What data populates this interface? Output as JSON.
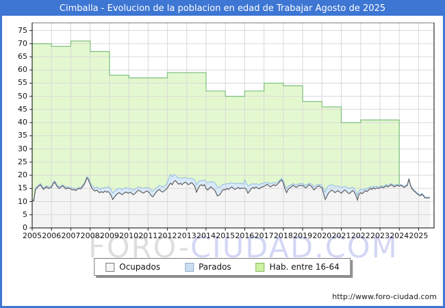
{
  "window": {
    "title": "Cimballa - Evolucion de la poblacion en edad de Trabajar Agosto de 2025"
  },
  "watermark": {
    "part1": "FORO-",
    "part2": "CIUDAD.COM"
  },
  "footer": {
    "url": "http://www.foro-ciudad.com"
  },
  "colors": {
    "frame_blue": "#3d76d3",
    "grid": "#d8d8d8",
    "plot_border": "#000000"
  },
  "legend": {
    "items": [
      {
        "label": "Ocupados",
        "fill": "#f6f6f6",
        "border": "#777777"
      },
      {
        "label": "Parados",
        "fill": "#cadef2",
        "border": "#8fadc8"
      },
      {
        "label": "Hab. entre 16-64",
        "fill": "#cdf0a2",
        "border": "#86b85e"
      }
    ]
  },
  "chart_data": {
    "type": "area",
    "title": "Cimballa - Evolucion de la poblacion en edad de Trabajar Agosto de 2025",
    "xlabel": "",
    "ylabel": "",
    "x_range": [
      2005,
      2025.8
    ],
    "y_range": [
      0,
      78
    ],
    "grid": true,
    "legend_position": "bottom",
    "y_ticks": [
      0,
      5,
      10,
      15,
      20,
      25,
      30,
      35,
      40,
      45,
      50,
      55,
      60,
      65,
      70,
      75
    ],
    "x_ticks": [
      2005,
      2006,
      2007,
      2008,
      2009,
      2010,
      2011,
      2012,
      2013,
      2014,
      2015,
      2016,
      2017,
      2018,
      2019,
      2020,
      2021,
      2022,
      2023,
      2024,
      2025
    ],
    "series": [
      {
        "name": "Hab. entre 16-64",
        "kind": "yearly-step",
        "fill": "#e4f8cf",
        "line": "#84c284",
        "years": [
          2005,
          2006,
          2007,
          2008,
          2009,
          2010,
          2011,
          2012,
          2013,
          2014,
          2015,
          2016,
          2017,
          2018,
          2019,
          2020,
          2021,
          2022,
          2023
        ],
        "values": [
          70,
          69,
          71,
          67,
          58,
          57,
          57,
          59,
          59,
          52,
          50,
          52,
          55,
          54,
          48,
          46,
          40,
          41,
          41
        ],
        "end_x": 2024.0
      },
      {
        "name": "Parados",
        "kind": "monthly",
        "stacked_on": "Ocupados",
        "fill": "#d9eafb",
        "line": "#9cc2e5",
        "start_x": 2005.0,
        "values": [
          0.5,
          0.5,
          0.6,
          0.5,
          0.4,
          0.5,
          0.6,
          0.5,
          0.4,
          0.5,
          0.6,
          0.5,
          0.5,
          0.4,
          0.5,
          0.6,
          0.5,
          0.6,
          0.5,
          0.4,
          0.5,
          0.6,
          0.5,
          0.5,
          0.5,
          0.6,
          0.5,
          0.6,
          0.5,
          0.4,
          0.5,
          0.6,
          0.5,
          0.4,
          0.5,
          0.8,
          0.8,
          1.0,
          1.2,
          1.0,
          1.2,
          1.4,
          1.2,
          1.4,
          1.6,
          1.4,
          1.6,
          1.8,
          2.0,
          2.2,
          2.4,
          2.2,
          2.0,
          1.8,
          1.6,
          1.8,
          2.0,
          1.8,
          1.6,
          1.8,
          1.6,
          1.4,
          1.6,
          1.8,
          1.6,
          1.4,
          1.2,
          1.4,
          1.6,
          1.8,
          1.6,
          1.4,
          1.6,
          1.8,
          2.0,
          2.2,
          1.8,
          1.6,
          1.4,
          1.6,
          1.8,
          2.0,
          1.8,
          1.6,
          2.2,
          2.8,
          3.4,
          3.0,
          2.6,
          2.2,
          2.0,
          2.4,
          2.0,
          2.4,
          2.0,
          1.8,
          2.0,
          2.4,
          2.0,
          1.6,
          2.0,
          2.4,
          2.8,
          2.4,
          2.0,
          1.6,
          2.0,
          1.8,
          2.4,
          2.8,
          2.4,
          2.0,
          2.4,
          2.8,
          3.0,
          3.4,
          3.0,
          2.6,
          2.2,
          2.0,
          2.2,
          1.8,
          2.2,
          1.8,
          1.6,
          2.0,
          2.2,
          1.8,
          1.6,
          2.0,
          1.8,
          1.6,
          3.0,
          2.4,
          2.8,
          2.2,
          1.8,
          1.4,
          1.6,
          1.2,
          1.4,
          1.6,
          1.4,
          1.2,
          1.2,
          1.0,
          0.8,
          1.0,
          1.2,
          1.0,
          0.8,
          1.0,
          0.8,
          0.6,
          0.5,
          0.6,
          0.8,
          1.2,
          1.6,
          1.2,
          1.0,
          0.8,
          0.6,
          0.8,
          1.0,
          0.8,
          0.6,
          0.8,
          0.6,
          0.8,
          1.0,
          0.8,
          0.6,
          0.8,
          1.0,
          1.2,
          1.0,
          0.8,
          0.6,
          0.8,
          1.0,
          1.6,
          2.8,
          3.2,
          2.8,
          2.4,
          2.0,
          2.2,
          2.4,
          2.0,
          1.8,
          2.0,
          2.2,
          1.8,
          1.4,
          1.6,
          1.8,
          2.0,
          1.6,
          1.2,
          1.4,
          1.6,
          1.8,
          1.4,
          1.2,
          1.4,
          1.0,
          0.8,
          1.0,
          0.8,
          0.6,
          0.8,
          0.6,
          0.8,
          0.6,
          0.5,
          0.6,
          0.4,
          0.6,
          0.4,
          0.5,
          0.4,
          0.5,
          0.4,
          0.5,
          0.4,
          0.5,
          0.4,
          0.4,
          0.3,
          0.4,
          0.3,
          0.4,
          0.3,
          0.2,
          0.3,
          0.4,
          0.3,
          0.4,
          0.3,
          0.3,
          0.4,
          0.3,
          0.4,
          0.3,
          0.3,
          0.3,
          0.3
        ]
      },
      {
        "name": "Ocupados",
        "kind": "monthly",
        "fill": "#f4f4f4",
        "line": "#5e5e5e",
        "start_x": 2005.0,
        "values": [
          10.3,
          10.3,
          14.5,
          15.2,
          15.8,
          16.4,
          15.6,
          14.6,
          15.2,
          15.6,
          15.0,
          15.2,
          15.4,
          16.8,
          17.4,
          16.2,
          15.4,
          15.0,
          15.6,
          16.0,
          15.4,
          14.8,
          15.2,
          15.0,
          14.8,
          14.4,
          14.6,
          14.2,
          14.6,
          15.0,
          14.8,
          15.4,
          16.2,
          17.4,
          19.0,
          18.2,
          16.6,
          15.2,
          14.4,
          14.0,
          14.4,
          13.8,
          13.4,
          13.8,
          13.4,
          14.0,
          13.6,
          13.8,
          13.4,
          12.4,
          10.8,
          11.6,
          12.4,
          13.0,
          13.4,
          13.0,
          12.6,
          13.2,
          13.6,
          13.4,
          13.2,
          13.6,
          13.0,
          12.6,
          13.2,
          13.8,
          14.4,
          14.0,
          13.6,
          13.2,
          13.6,
          14.0,
          13.8,
          13.2,
          12.2,
          11.8,
          12.8,
          13.6,
          14.2,
          14.6,
          14.0,
          13.6,
          14.0,
          14.6,
          15.2,
          16.2,
          17.0,
          16.4,
          17.6,
          18.0,
          17.2,
          16.6,
          17.0,
          16.4,
          17.0,
          17.4,
          17.0,
          16.4,
          16.8,
          17.2,
          16.6,
          15.8,
          13.6,
          14.8,
          16.0,
          16.4,
          16.0,
          16.4,
          15.0,
          14.4,
          15.0,
          15.6,
          15.0,
          14.6,
          13.6,
          12.2,
          12.4,
          13.0,
          14.2,
          14.6,
          14.4,
          15.0,
          14.6,
          15.2,
          15.6,
          15.0,
          14.6,
          15.0,
          15.4,
          14.8,
          15.2,
          15.0,
          15.2,
          14.6,
          13.2,
          14.0,
          14.8,
          15.4,
          15.0,
          15.6,
          15.2,
          14.8,
          15.4,
          15.6,
          15.8,
          16.2,
          16.6,
          16.0,
          15.6,
          16.0,
          16.4,
          16.0,
          16.4,
          17.0,
          17.8,
          18.2,
          17.0,
          14.8,
          13.4,
          14.6,
          15.2,
          15.6,
          16.2,
          15.8,
          15.4,
          15.8,
          16.2,
          16.0,
          16.2,
          15.6,
          15.2,
          15.8,
          16.4,
          16.0,
          15.4,
          14.4,
          15.0,
          15.6,
          16.0,
          15.6,
          15.2,
          13.0,
          10.8,
          12.0,
          13.2,
          13.8,
          14.4,
          14.0,
          13.4,
          13.8,
          14.2,
          13.6,
          13.2,
          13.8,
          14.4,
          14.0,
          13.4,
          13.0,
          13.6,
          14.2,
          13.6,
          12.4,
          10.6,
          12.8,
          13.4,
          13.0,
          13.6,
          14.2,
          13.8,
          14.4,
          15.0,
          14.6,
          15.2,
          14.8,
          15.2,
          15.0,
          15.2,
          15.6,
          15.2,
          15.6,
          16.0,
          15.6,
          16.0,
          16.4,
          16.0,
          15.6,
          16.0,
          16.2,
          15.8,
          16.2,
          15.8,
          15.4,
          15.8,
          16.2,
          18.6,
          16.0,
          14.8,
          14.2,
          13.6,
          13.0,
          12.6,
          12.2,
          12.8,
          12.2,
          11.4,
          11.4,
          11.4,
          11.4
        ]
      }
    ]
  }
}
